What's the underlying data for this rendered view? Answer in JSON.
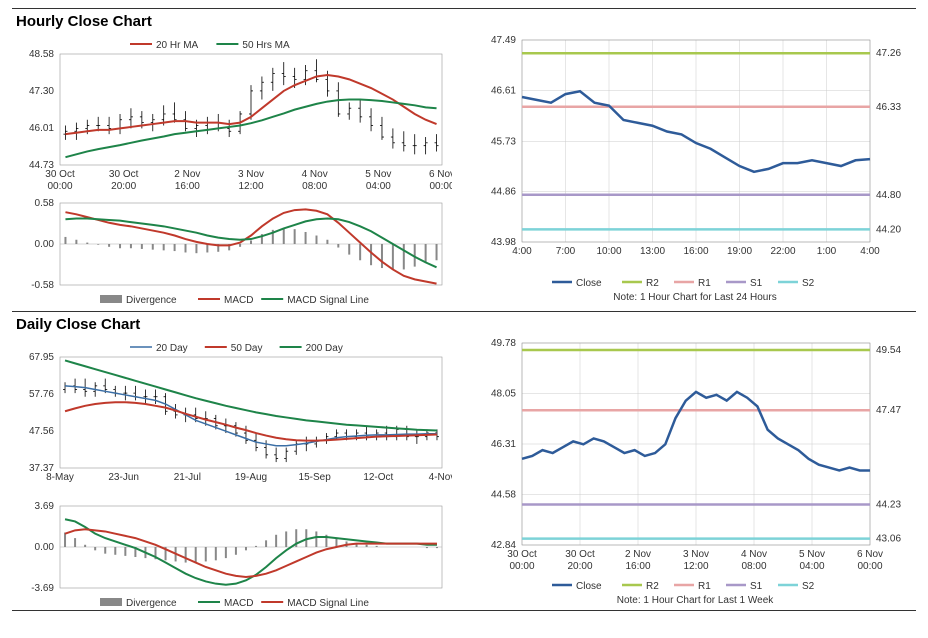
{
  "hourly": {
    "title": "Hourly Close Chart",
    "price": {
      "legend": [
        {
          "label": "20 Hr MA",
          "color": "#c0392b",
          "type": "line",
          "width": 2
        },
        {
          "label": "50 Hrs MA",
          "color": "#1e8449",
          "type": "line",
          "width": 2
        }
      ],
      "ylim": [
        44.73,
        48.58
      ],
      "yticks": [
        44.73,
        46.01,
        47.3,
        48.58
      ],
      "xticks": [
        "30 Oct\n00:00",
        "30 Oct\n20:00",
        "2 Nov\n16:00",
        "3 Nov\n12:00",
        "4 Nov\n08:00",
        "5 Nov\n04:00",
        "6 Nov\n00:00"
      ],
      "candles": [
        [
          45.8,
          46.1,
          45.6,
          45.9
        ],
        [
          45.9,
          46.2,
          45.6,
          46.0
        ],
        [
          46.0,
          46.3,
          45.8,
          46.1
        ],
        [
          46.1,
          46.4,
          45.9,
          46.1
        ],
        [
          46.1,
          46.4,
          45.8,
          46.0
        ],
        [
          46.0,
          46.5,
          45.8,
          46.3
        ],
        [
          46.3,
          46.7,
          46.0,
          46.4
        ],
        [
          46.4,
          46.6,
          46.0,
          46.2
        ],
        [
          46.2,
          46.5,
          45.9,
          46.3
        ],
        [
          46.3,
          46.8,
          46.1,
          46.5
        ],
        [
          46.5,
          46.9,
          46.2,
          46.3
        ],
        [
          46.3,
          46.6,
          45.9,
          46.0
        ],
        [
          46.0,
          46.3,
          45.7,
          46.1
        ],
        [
          46.1,
          46.4,
          45.8,
          46.2
        ],
        [
          46.2,
          46.5,
          45.9,
          46.0
        ],
        [
          46.0,
          46.3,
          45.7,
          45.9
        ],
        [
          45.9,
          46.6,
          45.8,
          46.5
        ],
        [
          46.5,
          47.5,
          46.3,
          47.3
        ],
        [
          47.3,
          47.8,
          47.0,
          47.6
        ],
        [
          47.6,
          48.1,
          47.3,
          47.9
        ],
        [
          47.9,
          48.3,
          47.5,
          47.8
        ],
        [
          47.8,
          48.1,
          47.4,
          47.7
        ],
        [
          47.7,
          48.2,
          47.5,
          48.0
        ],
        [
          48.0,
          48.4,
          47.6,
          47.7
        ],
        [
          47.7,
          48.0,
          47.1,
          47.3
        ],
        [
          47.3,
          47.6,
          46.4,
          46.5
        ],
        [
          46.5,
          46.9,
          46.3,
          46.7
        ],
        [
          46.7,
          47.0,
          46.2,
          46.4
        ],
        [
          46.4,
          46.7,
          45.9,
          46.1
        ],
        [
          46.1,
          46.4,
          45.6,
          45.7
        ],
        [
          45.7,
          46.0,
          45.3,
          45.5
        ],
        [
          45.5,
          45.9,
          45.2,
          45.4
        ],
        [
          45.4,
          45.8,
          45.1,
          45.4
        ],
        [
          45.4,
          45.7,
          45.1,
          45.5
        ],
        [
          45.5,
          45.8,
          45.2,
          45.4
        ]
      ],
      "ma20": [
        45.8,
        45.85,
        45.9,
        45.95,
        45.95,
        46.0,
        46.05,
        46.1,
        46.15,
        46.2,
        46.25,
        46.25,
        46.2,
        46.2,
        46.2,
        46.15,
        46.2,
        46.4,
        46.7,
        47.0,
        47.3,
        47.5,
        47.65,
        47.8,
        47.85,
        47.8,
        47.7,
        47.55,
        47.4,
        47.2,
        47.0,
        46.75,
        46.5,
        46.3,
        46.15
      ],
      "ma50": [
        45.0,
        45.1,
        45.2,
        45.28,
        45.35,
        45.42,
        45.5,
        45.58,
        45.65,
        45.72,
        45.8,
        45.85,
        45.9,
        45.95,
        46.0,
        46.05,
        46.1,
        46.18,
        46.28,
        46.4,
        46.52,
        46.65,
        46.75,
        46.85,
        46.93,
        46.98,
        47.0,
        47.0,
        46.98,
        46.95,
        46.9,
        46.85,
        46.8,
        46.73,
        46.7
      ],
      "price_color": "#000",
      "grid_color": "#d0d0d0"
    },
    "macd": {
      "ylim": [
        -0.58,
        0.58
      ],
      "yticks": [
        -0.58,
        0.0,
        0.58
      ],
      "legend": [
        {
          "label": "Divergence",
          "color": "#888",
          "type": "bar"
        },
        {
          "label": "MACD",
          "color": "#c0392b",
          "type": "line",
          "width": 2
        },
        {
          "label": "MACD Signal Line",
          "color": "#1e8449",
          "type": "line",
          "width": 2
        }
      ],
      "macd": [
        0.45,
        0.42,
        0.38,
        0.34,
        0.3,
        0.27,
        0.25,
        0.22,
        0.19,
        0.16,
        0.12,
        0.07,
        0.03,
        0.0,
        -0.02,
        -0.02,
        0.02,
        0.12,
        0.25,
        0.36,
        0.44,
        0.48,
        0.49,
        0.47,
        0.42,
        0.3,
        0.16,
        0.02,
        -0.12,
        -0.25,
        -0.36,
        -0.45,
        -0.5,
        -0.53,
        -0.56
      ],
      "signal": [
        0.35,
        0.36,
        0.36,
        0.35,
        0.34,
        0.33,
        0.31,
        0.29,
        0.27,
        0.25,
        0.22,
        0.19,
        0.16,
        0.12,
        0.09,
        0.07,
        0.06,
        0.07,
        0.11,
        0.16,
        0.22,
        0.27,
        0.32,
        0.35,
        0.36,
        0.35,
        0.31,
        0.25,
        0.18,
        0.09,
        0.0,
        -0.09,
        -0.18,
        -0.26,
        -0.33
      ],
      "hist": [
        0.1,
        0.06,
        0.02,
        -0.01,
        -0.04,
        -0.06,
        -0.06,
        -0.07,
        -0.08,
        -0.09,
        -0.1,
        -0.12,
        -0.13,
        -0.12,
        -0.11,
        -0.09,
        -0.04,
        0.05,
        0.14,
        0.2,
        0.22,
        0.21,
        0.17,
        0.12,
        0.06,
        -0.05,
        -0.15,
        -0.23,
        -0.3,
        -0.34,
        -0.36,
        -0.36,
        -0.32,
        -0.27,
        -0.23
      ],
      "hist_color": "#888"
    },
    "sr": {
      "ylim": [
        43.98,
        47.49
      ],
      "yticks": [
        43.98,
        44.86,
        45.73,
        46.61,
        47.49
      ],
      "xticks": [
        "4:00",
        "7:00",
        "10:00",
        "13:00",
        "16:00",
        "19:00",
        "22:00",
        "1:00",
        "4:00"
      ],
      "close": [
        46.5,
        46.45,
        46.4,
        46.55,
        46.6,
        46.4,
        46.35,
        46.1,
        46.05,
        46.0,
        45.9,
        45.85,
        45.7,
        45.6,
        45.45,
        45.3,
        45.2,
        45.25,
        45.35,
        45.35,
        45.4,
        45.35,
        45.3,
        45.4,
        45.42
      ],
      "close_color": "#2e5b99",
      "levels": [
        {
          "name": "R2",
          "value": 47.26,
          "color": "#a8c84e"
        },
        {
          "name": "R1",
          "value": 46.33,
          "color": "#e8a5a5"
        },
        {
          "name": "S1",
          "value": 44.8,
          "color": "#a898c8"
        },
        {
          "name": "S2",
          "value": 44.2,
          "color": "#7dd3d8"
        }
      ],
      "legend": [
        {
          "label": "Close",
          "color": "#2e5b99"
        },
        {
          "label": "R2",
          "color": "#a8c84e"
        },
        {
          "label": "R1",
          "color": "#e8a5a5"
        },
        {
          "label": "S1",
          "color": "#a898c8"
        },
        {
          "label": "S2",
          "color": "#7dd3d8"
        }
      ],
      "note": "Note: 1 Hour Chart for Last 24 Hours"
    }
  },
  "daily": {
    "title": "Daily Close Chart",
    "price": {
      "legend": [
        {
          "label": "20 Day",
          "color": "#3a6ea5",
          "type": "line",
          "width": 1.5
        },
        {
          "label": "50 Day",
          "color": "#c0392b",
          "type": "line",
          "width": 2
        },
        {
          "label": "200 Day",
          "color": "#1e8449",
          "type": "line",
          "width": 2
        }
      ],
      "ylim": [
        37.37,
        67.95
      ],
      "yticks": [
        37.37,
        47.56,
        57.76,
        67.95
      ],
      "xticks": [
        "8-May",
        "23-Jun",
        "21-Jul",
        "19-Aug",
        "15-Sep",
        "12-Oct",
        "4-Nov"
      ],
      "candles_d": [
        [
          59,
          61,
          58,
          60
        ],
        [
          60,
          62,
          58,
          59
        ],
        [
          59,
          62,
          57,
          58.5
        ],
        [
          58.5,
          61,
          57,
          60
        ],
        [
          60,
          62,
          58,
          59
        ],
        [
          59,
          60,
          57,
          58
        ],
        [
          58,
          60,
          56,
          58
        ],
        [
          58,
          60,
          56,
          57
        ],
        [
          57,
          59,
          55,
          57
        ],
        [
          57,
          59,
          55,
          57
        ],
        [
          57,
          58,
          52,
          53
        ],
        [
          53,
          55,
          51,
          52
        ],
        [
          52,
          54,
          50,
          52
        ],
        [
          52,
          54,
          50,
          51
        ],
        [
          51,
          53,
          49,
          51
        ],
        [
          51,
          52,
          48,
          49
        ],
        [
          49,
          51,
          47,
          49
        ],
        [
          49,
          50,
          46,
          47
        ],
        [
          47,
          49,
          44,
          45
        ],
        [
          45,
          47,
          42,
          43
        ],
        [
          43,
          45,
          40,
          41
        ],
        [
          41,
          43,
          39,
          40
        ],
        [
          40,
          43,
          39,
          42
        ],
        [
          42,
          45,
          41,
          44
        ],
        [
          44,
          46,
          42,
          44
        ],
        [
          44,
          46,
          43,
          45
        ],
        [
          45,
          47,
          44,
          46
        ],
        [
          46,
          48,
          45,
          47
        ],
        [
          47,
          48,
          45,
          46
        ],
        [
          46,
          48,
          45,
          47
        ],
        [
          47,
          49,
          45,
          46
        ],
        [
          46,
          48,
          45,
          47
        ],
        [
          47,
          49,
          45,
          46
        ],
        [
          46,
          49,
          45,
          48
        ],
        [
          48,
          49,
          45,
          46
        ],
        [
          46,
          48,
          44,
          46
        ],
        [
          46,
          48,
          45,
          47
        ],
        [
          47,
          48,
          45,
          46
        ]
      ],
      "ma20_d": [
        60,
        59.8,
        59.5,
        59,
        58.5,
        58,
        57.5,
        57,
        56.5,
        56,
        55,
        53.5,
        52,
        50.5,
        49.5,
        48.5,
        47.5,
        46.5,
        45.5,
        44.5,
        44,
        43.5,
        43.5,
        43.8,
        44.2,
        44.7,
        45.2,
        45.7,
        46,
        46.2,
        46.4,
        46.5,
        46.5,
        46.6,
        46.7,
        46.7,
        46.8,
        46.8
      ],
      "ma50_d": [
        53,
        53.8,
        54.5,
        55,
        55.3,
        55.5,
        55.5,
        55.3,
        55,
        54.5,
        54,
        53.2,
        52.3,
        51.5,
        50.7,
        50,
        49.3,
        48.5,
        47.8,
        47,
        46.3,
        45.7,
        45.3,
        45,
        44.9,
        44.9,
        45,
        45.2,
        45.4,
        45.6,
        45.8,
        46,
        46.1,
        46.2,
        46.3,
        46.4,
        46.5,
        46.6
      ],
      "ma200_d": [
        67,
        66.2,
        65.4,
        64.6,
        63.8,
        63,
        62.2,
        61.4,
        60.6,
        59.8,
        59,
        58.2,
        57.4,
        56.6,
        55.9,
        55.2,
        54.5,
        53.9,
        53.3,
        52.7,
        52.2,
        51.7,
        51.3,
        50.9,
        50.5,
        50.2,
        49.9,
        49.6,
        49.3,
        49.1,
        48.9,
        48.7,
        48.5,
        48.3,
        48.1,
        47.9,
        47.8,
        47.7
      ],
      "price_color": "#000",
      "grid_color": "#d0d0d0"
    },
    "macd": {
      "ylim": [
        -3.69,
        3.69
      ],
      "yticks": [
        -3.69,
        0.0,
        3.69
      ],
      "legend": [
        {
          "label": "Divergence",
          "color": "#888",
          "type": "bar"
        },
        {
          "label": "MACD",
          "color": "#1e8449",
          "type": "line",
          "width": 2
        },
        {
          "label": "MACD Signal Line",
          "color": "#c0392b",
          "type": "line",
          "width": 2
        }
      ],
      "macd_d": [
        2.5,
        2.3,
        1.8,
        1.2,
        0.8,
        0.5,
        0.2,
        -0.1,
        -0.5,
        -0.9,
        -1.4,
        -1.9,
        -2.4,
        -2.8,
        -3.1,
        -3.3,
        -3.4,
        -3.3,
        -3.0,
        -2.5,
        -1.8,
        -1.0,
        -0.3,
        0.3,
        0.7,
        0.9,
        0.9,
        0.8,
        0.7,
        0.6,
        0.5,
        0.4,
        0.3,
        0.3,
        0.3,
        0.3,
        0.2,
        0.2
      ],
      "signal_d": [
        1.2,
        1.5,
        1.6,
        1.5,
        1.4,
        1.2,
        1.0,
        0.8,
        0.5,
        0.2,
        -0.2,
        -0.6,
        -1.0,
        -1.4,
        -1.8,
        -2.1,
        -2.4,
        -2.6,
        -2.7,
        -2.6,
        -2.4,
        -2.1,
        -1.7,
        -1.3,
        -0.9,
        -0.5,
        -0.2,
        0.0,
        0.2,
        0.3,
        0.3,
        0.3,
        0.3,
        0.3,
        0.3,
        0.3,
        0.3,
        0.3
      ],
      "hist_d": [
        1.3,
        0.8,
        0.2,
        -0.3,
        -0.6,
        -0.7,
        -0.8,
        -0.9,
        -1.0,
        -1.1,
        -1.2,
        -1.3,
        -1.4,
        -1.4,
        -1.3,
        -1.2,
        -1.0,
        -0.7,
        -0.3,
        0.1,
        0.6,
        1.1,
        1.4,
        1.6,
        1.6,
        1.4,
        1.1,
        0.8,
        0.5,
        0.3,
        0.2,
        0.1,
        0.0,
        0.0,
        0.0,
        0.0,
        -0.1,
        -0.1
      ],
      "hist_color": "#888"
    },
    "sr": {
      "ylim": [
        42.84,
        49.78
      ],
      "yticks": [
        42.84,
        44.58,
        46.31,
        48.05,
        49.78
      ],
      "xticks": [
        "30 Oct\n00:00",
        "30 Oct\n20:00",
        "2 Nov\n16:00",
        "3 Nov\n12:00",
        "4 Nov\n08:00",
        "5 Nov\n04:00",
        "6 Nov\n00:00"
      ],
      "close": [
        45.8,
        45.9,
        46.1,
        46.0,
        46.2,
        46.4,
        46.3,
        46.5,
        46.4,
        46.2,
        46.0,
        46.1,
        45.9,
        46.0,
        46.3,
        47.2,
        47.8,
        48.1,
        47.9,
        48.0,
        47.8,
        48.1,
        47.9,
        47.6,
        46.8,
        46.5,
        46.3,
        46.1,
        45.8,
        45.6,
        45.5,
        45.4,
        45.5,
        45.4,
        45.4
      ],
      "close_color": "#2e5b99",
      "levels": [
        {
          "name": "R2",
          "value": 49.54,
          "color": "#a8c84e"
        },
        {
          "name": "R1",
          "value": 47.47,
          "color": "#e8a5a5"
        },
        {
          "name": "S1",
          "value": 44.23,
          "color": "#a898c8"
        },
        {
          "name": "S2",
          "value": 43.06,
          "color": "#7dd3d8"
        }
      ],
      "legend": [
        {
          "label": "Close",
          "color": "#2e5b99"
        },
        {
          "label": "R2",
          "color": "#a8c84e"
        },
        {
          "label": "R1",
          "color": "#e8a5a5"
        },
        {
          "label": "S1",
          "color": "#a898c8"
        },
        {
          "label": "S2",
          "color": "#7dd3d8"
        }
      ],
      "note": "Note: 1 Hour Chart for Last 1 Week"
    }
  }
}
